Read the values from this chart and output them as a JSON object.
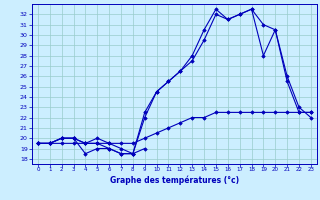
{
  "xlabel": "Graphe des températures (°c)",
  "bg_color": "#cceeff",
  "line_color": "#0000bb",
  "grid_color": "#99cccc",
  "yticks": [
    18,
    19,
    20,
    21,
    22,
    23,
    24,
    25,
    26,
    27,
    28,
    29,
    30,
    31,
    32
  ],
  "hours": [
    0,
    1,
    2,
    3,
    4,
    5,
    6,
    7,
    8,
    9,
    10,
    11,
    12,
    13,
    14,
    15,
    16,
    17,
    18,
    19,
    20,
    21,
    22,
    23
  ],
  "line_min": [
    19.5,
    19.5,
    20.0,
    20.0,
    18.5,
    19.0,
    19.0,
    18.5,
    18.5,
    19.0,
    null,
    null,
    null,
    null,
    null,
    null,
    null,
    null,
    null,
    null,
    null,
    null,
    null,
    null
  ],
  "line_low": [
    19.5,
    19.5,
    20.0,
    20.0,
    19.5,
    19.5,
    19.0,
    18.5,
    18.5,
    22.5,
    24.5,
    25.5,
    26.5,
    27.5,
    29.5,
    32.0,
    31.5,
    32.0,
    32.5,
    28.0,
    30.5,
    26.0,
    23.0,
    22.0
  ],
  "line_high": [
    19.5,
    19.5,
    20.0,
    20.0,
    19.5,
    20.0,
    19.5,
    19.0,
    18.5,
    22.0,
    24.5,
    25.5,
    26.5,
    28.0,
    30.5,
    32.5,
    31.5,
    32.0,
    32.5,
    31.0,
    30.5,
    25.5,
    22.5,
    22.5
  ],
  "line_avg": [
    19.5,
    19.5,
    19.5,
    19.5,
    19.5,
    19.5,
    19.5,
    19.5,
    19.5,
    20.0,
    20.5,
    21.0,
    21.5,
    22.0,
    22.0,
    22.5,
    22.5,
    22.5,
    22.5,
    22.5,
    22.5,
    22.5,
    22.5,
    22.5
  ]
}
